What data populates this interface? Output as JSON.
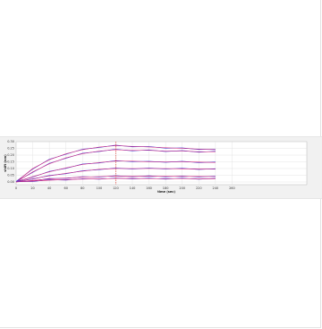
{
  "chart_data": {
    "type": "line",
    "xlabel": "time (sec)",
    "ylabel": "shift (nm)",
    "xlim": [
      0,
      350
    ],
    "ylim": [
      -0.02,
      0.3
    ],
    "x_ticks": [
      "0",
      "20",
      "40",
      "60",
      "80",
      "100",
      "120",
      "140",
      "160",
      "180",
      "200",
      "220",
      "240",
      "260"
    ],
    "y_ticks": [
      "0.00",
      "0.05",
      "0.10",
      "0.15",
      "0.20",
      "0.25",
      "0.30"
    ],
    "grid": true,
    "marker_line_x": 120,
    "series": [
      {
        "x": [
          0,
          20,
          40,
          60,
          80,
          100,
          120,
          140,
          160,
          180,
          200,
          220,
          240
        ],
        "values": [
          0.0,
          0.1,
          0.165,
          0.21,
          0.24,
          0.26,
          0.27,
          0.265,
          0.26,
          0.255,
          0.25,
          0.245,
          0.24
        ]
      },
      {
        "x": [
          0,
          20,
          40,
          60,
          80,
          100,
          120,
          140,
          160,
          180,
          200,
          220,
          240
        ],
        "values": [
          0.0,
          0.075,
          0.135,
          0.18,
          0.21,
          0.23,
          0.24,
          0.235,
          0.235,
          0.23,
          0.23,
          0.225,
          0.225
        ]
      },
      {
        "x": [
          0,
          20,
          40,
          60,
          80,
          100,
          120,
          140,
          160,
          180,
          200,
          220,
          240
        ],
        "values": [
          0.0,
          0.04,
          0.075,
          0.105,
          0.13,
          0.145,
          0.155,
          0.155,
          0.15,
          0.15,
          0.15,
          0.148,
          0.145
        ]
      },
      {
        "x": [
          0,
          20,
          40,
          60,
          80,
          100,
          120,
          140,
          160,
          180,
          200,
          220,
          240
        ],
        "values": [
          0.0,
          0.025,
          0.045,
          0.065,
          0.08,
          0.095,
          0.1,
          0.1,
          0.1,
          0.1,
          0.098,
          0.097,
          0.095
        ]
      },
      {
        "x": [
          0,
          20,
          40,
          60,
          80,
          100,
          120,
          140,
          160,
          180,
          200,
          220,
          240
        ],
        "values": [
          0.0,
          0.012,
          0.022,
          0.03,
          0.036,
          0.04,
          0.043,
          0.043,
          0.042,
          0.042,
          0.041,
          0.041,
          0.04
        ]
      },
      {
        "x": [
          0,
          20,
          40,
          60,
          80,
          100,
          120,
          140,
          160,
          180,
          200,
          220,
          240
        ],
        "values": [
          0.0,
          0.007,
          0.013,
          0.018,
          0.021,
          0.024,
          0.026,
          0.026,
          0.025,
          0.025,
          0.025,
          0.024,
          0.024
        ]
      }
    ],
    "colors": {
      "data": "#4a3ad0",
      "fit": "#d8277a",
      "marker": "#e0352a",
      "grid": "#dedede"
    }
  }
}
